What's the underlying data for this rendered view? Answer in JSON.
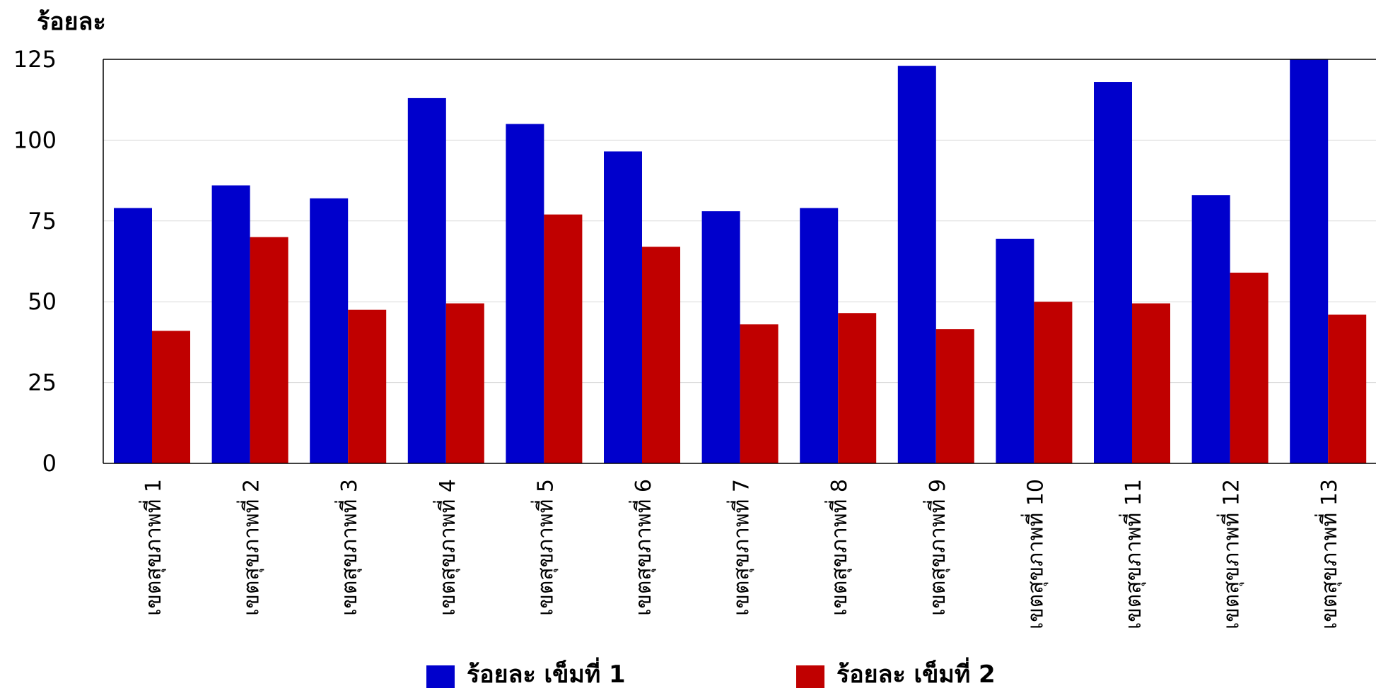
{
  "chart_data": {
    "type": "bar",
    "title": "",
    "xlabel": "",
    "ylabel": "ร้อยละ",
    "ylim": [
      0,
      125
    ],
    "yticks": [
      0,
      25,
      50,
      75,
      100,
      125
    ],
    "grid": true,
    "legend_position": "bottom",
    "categories": [
      "เขตสุขภาพที่ 1",
      "เขตสุขภาพที่ 2",
      "เขตสุขภาพที่ 3",
      "เขตสุขภาพที่ 4",
      "เขตสุขภาพที่ 5",
      "เขตสุขภาพที่ 6",
      "เขตสุขภาพที่ 7",
      "เขตสุขภาพที่ 8",
      "เขตสุขภาพที่ 9",
      "เขตสุขภาพที่ 10",
      "เขตสุขภาพที่ 11",
      "เขตสุขภาพที่ 12",
      "เขตสุขภาพที่ 13"
    ],
    "series": [
      {
        "name": "ร้อยละ เข็มที่ 1",
        "color": "#0000cc",
        "values": [
          79,
          86,
          82,
          113,
          105,
          96.5,
          78,
          79,
          123,
          69.5,
          118,
          83,
          125
        ]
      },
      {
        "name": "ร้อยละ เข็มที่ 2",
        "color": "#c00000",
        "values": [
          41,
          70,
          47.5,
          49.5,
          77,
          67,
          43,
          46.5,
          41.5,
          50,
          49.5,
          59,
          46
        ]
      }
    ]
  }
}
